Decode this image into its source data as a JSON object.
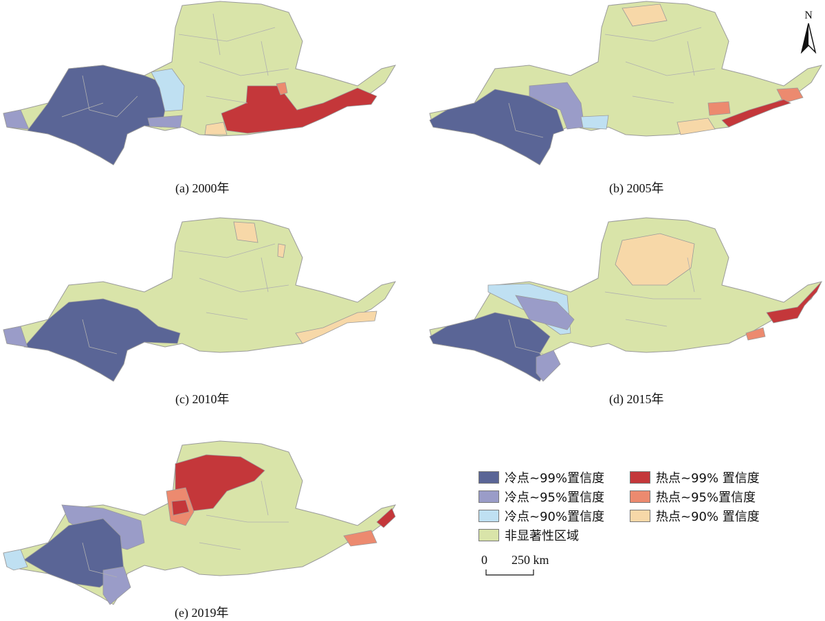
{
  "colors": {
    "cold99": "#5a6596",
    "cold95": "#9a9cc8",
    "cold90": "#bfe0f2",
    "ns": "#d9e4a9",
    "hot99": "#c4373a",
    "hot95": "#ec8a6f",
    "hot90": "#f7d8a8",
    "border": "#9a9a9a"
  },
  "panels": [
    {
      "caption": "(a) 2000年"
    },
    {
      "caption": "(b) 2005年"
    },
    {
      "caption": "(c) 2010年"
    },
    {
      "caption": "(d) 2015年"
    },
    {
      "caption": "(e) 2019年"
    }
  ],
  "legend": [
    {
      "label": "冷点~99%置信度",
      "color_key": "cold99"
    },
    {
      "label": "冷点~95%置信度",
      "color_key": "cold95"
    },
    {
      "label": "冷点~90%置信度",
      "color_key": "cold90"
    },
    {
      "label": "非显著性区域",
      "color_key": "ns"
    },
    {
      "label": "热点~99% 置信度",
      "color_key": "hot99"
    },
    {
      "label": "热点~95%置信度",
      "color_key": "hot95"
    },
    {
      "label": "热点~90% 置信度",
      "color_key": "hot90"
    }
  ],
  "scale_bar": {
    "zero": "0",
    "distance": "250 km"
  },
  "north_arrow": {
    "label": "N"
  }
}
